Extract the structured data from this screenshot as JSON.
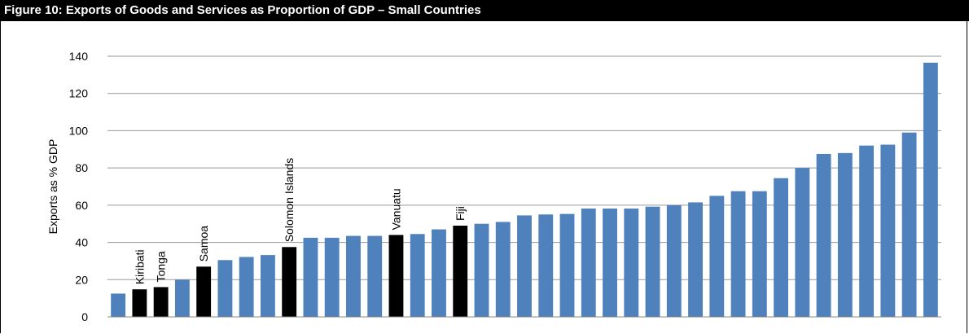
{
  "figure": {
    "title": "Figure 10: Exports of Goods and Services as Proportion of GDP – Small Countries"
  },
  "colors": {
    "default_bar": "#4F81BD",
    "highlight_bar": "#000000",
    "grid": "#999999"
  },
  "chart_data": {
    "type": "bar",
    "title": "",
    "xlabel": "",
    "ylabel": "Exports  as % GDP",
    "ylim": [
      0,
      140
    ],
    "yticks": [
      0,
      20,
      40,
      60,
      80,
      100,
      120,
      140
    ],
    "grid": true,
    "legend": "none",
    "values": [
      12.5,
      14.8,
      16.0,
      20.0,
      27.0,
      30.5,
      32.2,
      33.2,
      37.5,
      42.5,
      42.5,
      43.5,
      43.5,
      44.0,
      44.5,
      47.0,
      49.0,
      50.0,
      51.0,
      54.5,
      55.0,
      55.3,
      58.2,
      58.2,
      58.2,
      59.2,
      60.0,
      61.5,
      65.0,
      67.5,
      67.5,
      74.5,
      80.0,
      87.5,
      88.0,
      92.0,
      92.5,
      99.0,
      136.5
    ],
    "labels": [
      "",
      "Kiribati",
      "Tonga",
      "",
      "Samoa",
      "",
      "",
      "",
      "Solomon Islands",
      "",
      "",
      "",
      "",
      "Vanuatu",
      "",
      "",
      "Fiji",
      "",
      "",
      "",
      "",
      "",
      "",
      "",
      "",
      "",
      "",
      "",
      "",
      "",
      "",
      "",
      "",
      "",
      "",
      "",
      "",
      "",
      ""
    ],
    "highlighted": [
      1,
      2,
      4,
      8,
      13,
      16
    ]
  }
}
